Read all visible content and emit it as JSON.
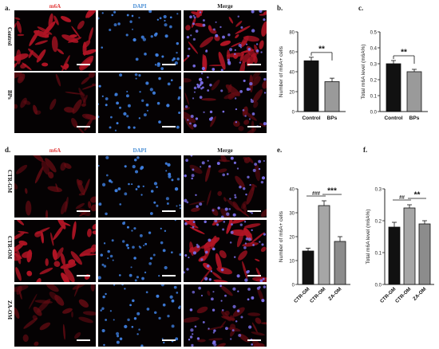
{
  "panel_letters": {
    "a": "a.",
    "b": "b.",
    "c": "c.",
    "d": "d.",
    "e": "e.",
    "f": "f."
  },
  "image_grid_top": {
    "columns": [
      "m6A",
      "DAPI",
      "Merge"
    ],
    "rows": [
      "Control",
      "BPs"
    ]
  },
  "image_grid_bottom": {
    "columns": [
      "m6A",
      "DAPI",
      "Merge"
    ],
    "rows": [
      "CTR-GM",
      "CTR-OM",
      "ZA-OM"
    ]
  },
  "colors": {
    "m6a_label": "#e23a3a",
    "dapi_label": "#4a8fd6",
    "merge_label": "#222222",
    "bar_black": "#111111",
    "bar_gray": "#9a9a9a",
    "bar_gray_light": "#a6a6a6"
  },
  "chart_data": [
    {
      "id": "b",
      "type": "bar",
      "categories": [
        "Control",
        "BPs"
      ],
      "values": [
        51,
        30
      ],
      "errors": [
        3.5,
        3.5
      ],
      "bar_colors": [
        "#111111",
        "#9a9a9a"
      ],
      "ylabel": "Number of m6A+ cells",
      "ylim": [
        0,
        80
      ],
      "yticks": [
        0,
        20,
        40,
        60,
        80
      ],
      "significance": [
        {
          "from": 0,
          "to": 1,
          "text": "**"
        }
      ]
    },
    {
      "id": "c",
      "type": "bar",
      "categories": [
        "Control",
        "BPs"
      ],
      "values": [
        0.3,
        0.25
      ],
      "errors": [
        0.02,
        0.015
      ],
      "bar_colors": [
        "#111111",
        "#9a9a9a"
      ],
      "ylabel": "Total m6A level (m6A%)",
      "ylim": [
        0,
        0.5
      ],
      "yticks": [
        0.0,
        0.1,
        0.2,
        0.3,
        0.4,
        0.5
      ],
      "significance": [
        {
          "from": 0,
          "to": 1,
          "text": "**"
        }
      ]
    },
    {
      "id": "e",
      "type": "bar",
      "categories": [
        "CTR-GM",
        "CTR-OM",
        "ZA-OM"
      ],
      "values": [
        14,
        33,
        18
      ],
      "errors": [
        1.2,
        2,
        2
      ],
      "bar_colors": [
        "#111111",
        "#a6a6a6",
        "#8c8c8c"
      ],
      "ylabel": "Number of m6A+ cells",
      "ylim": [
        0,
        40
      ],
      "yticks": [
        0,
        10,
        20,
        30,
        40
      ],
      "significance": [
        {
          "from": 0,
          "to": 1,
          "text": "###"
        },
        {
          "from": 1,
          "to": 2,
          "text": "***"
        }
      ]
    },
    {
      "id": "f",
      "type": "bar",
      "categories": [
        "CTR-GM",
        "CTR-OM",
        "ZA-OM"
      ],
      "values": [
        0.18,
        0.24,
        0.19
      ],
      "errors": [
        0.015,
        0.01,
        0.01
      ],
      "bar_colors": [
        "#111111",
        "#a6a6a6",
        "#8c8c8c"
      ],
      "ylabel": "Total m6A level (m6A%)",
      "ylim": [
        0,
        0.3
      ],
      "yticks": [
        0.0,
        0.1,
        0.2,
        0.3
      ],
      "significance": [
        {
          "from": 0,
          "to": 1,
          "text": "##"
        },
        {
          "from": 1,
          "to": 2,
          "text": "**"
        }
      ]
    }
  ]
}
